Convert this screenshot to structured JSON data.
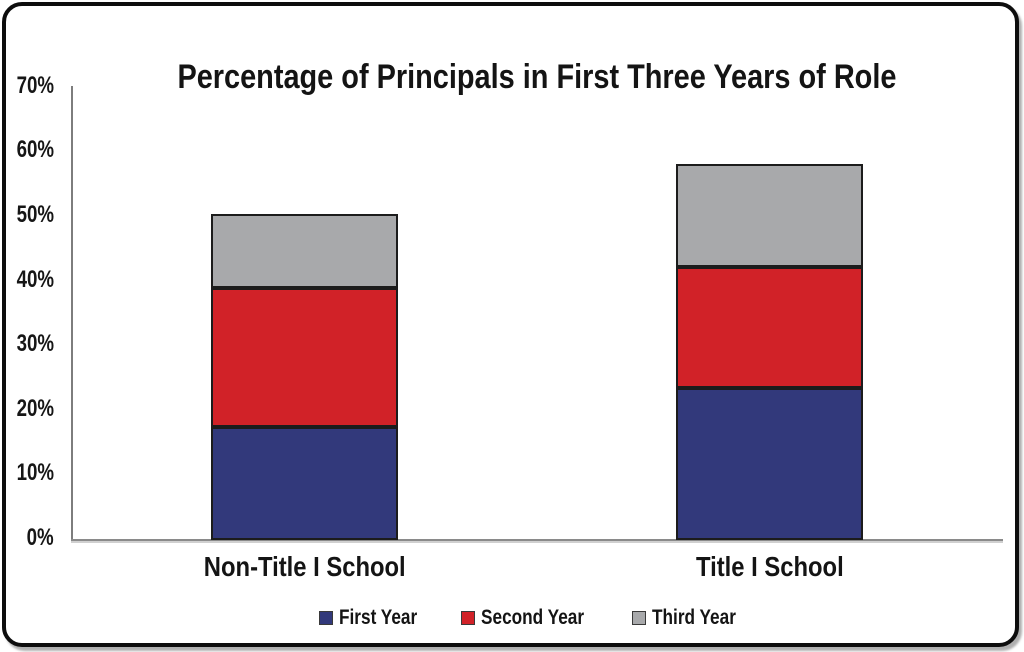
{
  "chart_data": {
    "type": "bar",
    "stacked": true,
    "title": "Percentage of Principals in First Three Years of Role",
    "categories": [
      "Non-Title I School",
      "Title I School"
    ],
    "series": [
      {
        "name": "First Year",
        "color": "#32397B",
        "values": [
          17.5,
          23.6
        ]
      },
      {
        "name": "Second Year",
        "color": "#D12228",
        "values": [
          21.5,
          18.6
        ]
      },
      {
        "name": "Third Year",
        "color": "#A8A9AB",
        "values": [
          11.5,
          16.0
        ]
      }
    ],
    "ylim": [
      0,
      70
    ],
    "ytick_step": 10,
    "ytick_labels": [
      "0%",
      "10%",
      "20%",
      "30%",
      "40%",
      "50%",
      "60%",
      "70%"
    ],
    "yaxis_format": "percent",
    "grid": false,
    "legend_position": "bottom"
  }
}
